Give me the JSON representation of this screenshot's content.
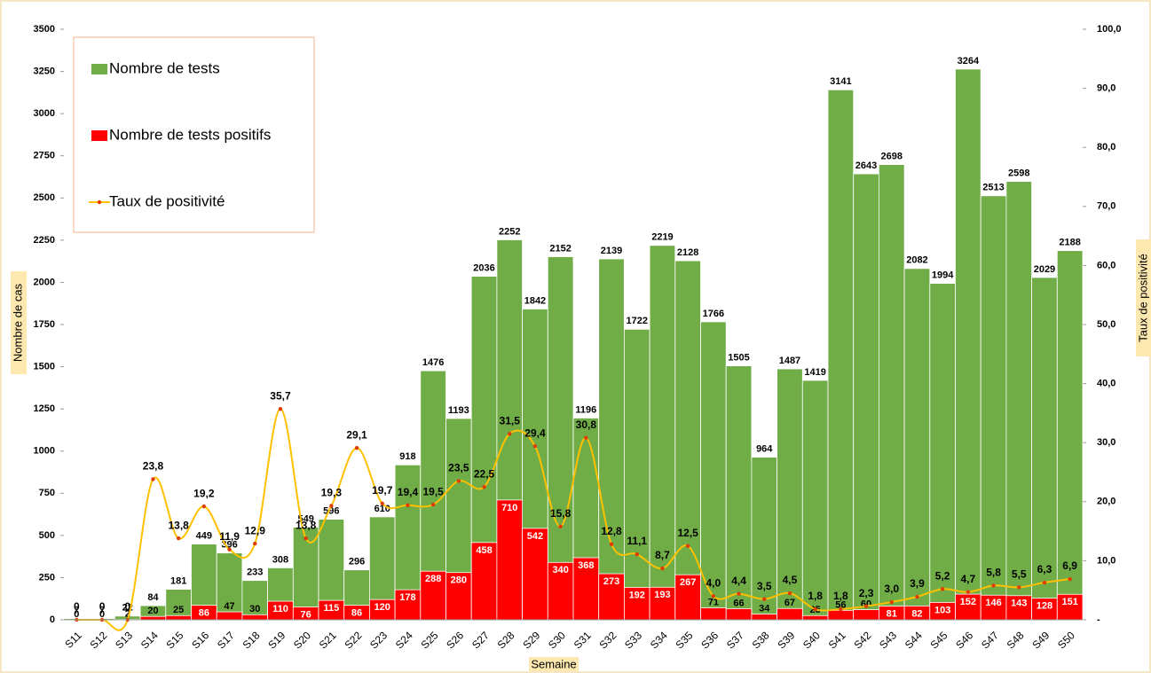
{
  "chart_data": {
    "type": "bar-line",
    "x_label": "Semaine",
    "y_label": "Nombre de cas",
    "y2_label": "Taux de positivité",
    "categories": [
      "S11",
      "S12",
      "S13",
      "S14",
      "S15",
      "S16",
      "S17",
      "S18",
      "S19",
      "S20",
      "S21",
      "S22",
      "S23",
      "S24",
      "S25",
      "S26",
      "S27",
      "S28",
      "S29",
      "S30",
      "S31",
      "S32",
      "S33",
      "S34",
      "S35",
      "S36",
      "S37",
      "S38",
      "S39",
      "S40",
      "S41",
      "S42",
      "S43",
      "S44",
      "S45",
      "S46",
      "S47",
      "S48",
      "S49",
      "S50"
    ],
    "series": [
      {
        "name": "Nombre de tests",
        "color": "#70ad47",
        "kind": "bar",
        "values": [
          7,
          7,
          22,
          84,
          181,
          449,
          396,
          233,
          308,
          549,
          596,
          296,
          610,
          918,
          1476,
          1193,
          2036,
          2252,
          1842,
          2152,
          1196,
          2139,
          1722,
          2219,
          2128,
          1766,
          1505,
          964,
          1487,
          1419,
          3141,
          2643,
          2698,
          2082,
          1994,
          3264,
          2513,
          2598,
          2029,
          2188
        ]
      },
      {
        "name": "Nombre de tests positifs",
        "color": "#ff0000",
        "kind": "bar",
        "values": [
          0,
          0,
          2,
          20,
          25,
          86,
          47,
          30,
          110,
          76,
          115,
          86,
          120,
          178,
          288,
          280,
          458,
          710,
          542,
          340,
          368,
          273,
          192,
          193,
          267,
          71,
          66,
          34,
          67,
          25,
          56,
          60,
          81,
          82,
          103,
          152,
          146,
          143,
          128,
          151
        ]
      },
      {
        "name": "Taux de positivité",
        "color": "#ffc000",
        "marker_color": "#e03c00",
        "kind": "line",
        "axis": "y2",
        "values": [
          0,
          0,
          0,
          23.8,
          13.8,
          19.2,
          11.9,
          12.9,
          35.7,
          13.8,
          19.3,
          29.1,
          19.7,
          19.4,
          19.5,
          23.5,
          22.5,
          31.5,
          29.4,
          15.8,
          30.8,
          12.8,
          11.1,
          8.7,
          12.5,
          4.0,
          4.4,
          3.5,
          4.5,
          1.8,
          1.8,
          2.3,
          3.0,
          3.9,
          5.2,
          4.7,
          5.8,
          5.5,
          6.3,
          6.9
        ],
        "value_labels": [
          "0",
          "0",
          "0",
          "23,8",
          "13,8",
          "19,2",
          "11,9",
          "12,9",
          "35,7",
          "13,8",
          "19,3",
          "29,1",
          "19,7",
          "19,4",
          "19,5",
          "23,5",
          "22,5",
          "31,5",
          "29,4",
          "15,8",
          "30,8",
          "12,8",
          "11,1",
          "8,7",
          "12,5",
          "4,0",
          "4,4",
          "3,5",
          "4,5",
          "1,8",
          "1,8",
          "2,3",
          "3,0",
          "3,9",
          "5,2",
          "4,7",
          "5,8",
          "5,5",
          "6,3",
          "6,9"
        ]
      }
    ],
    "ylim": [
      0,
      3500
    ],
    "yticks": [
      0,
      250,
      500,
      750,
      1000,
      1250,
      1500,
      1750,
      2000,
      2250,
      2500,
      2750,
      3000,
      3250,
      3500
    ],
    "y2lim": [
      0,
      100
    ],
    "y2ticks": [
      {
        "value": 0,
        "label": "-"
      },
      {
        "value": 10,
        "label": "10,0"
      },
      {
        "value": 20,
        "label": "20,0"
      },
      {
        "value": 30,
        "label": "30,0"
      },
      {
        "value": 40,
        "label": "40,0"
      },
      {
        "value": 50,
        "label": "50,0"
      },
      {
        "value": 60,
        "label": "60,0"
      },
      {
        "value": 70,
        "label": "70,0"
      },
      {
        "value": 80,
        "label": "80,0"
      },
      {
        "value": 90,
        "label": "90,0"
      },
      {
        "value": 100,
        "label": "100,0"
      }
    ],
    "legend": "top-left"
  }
}
